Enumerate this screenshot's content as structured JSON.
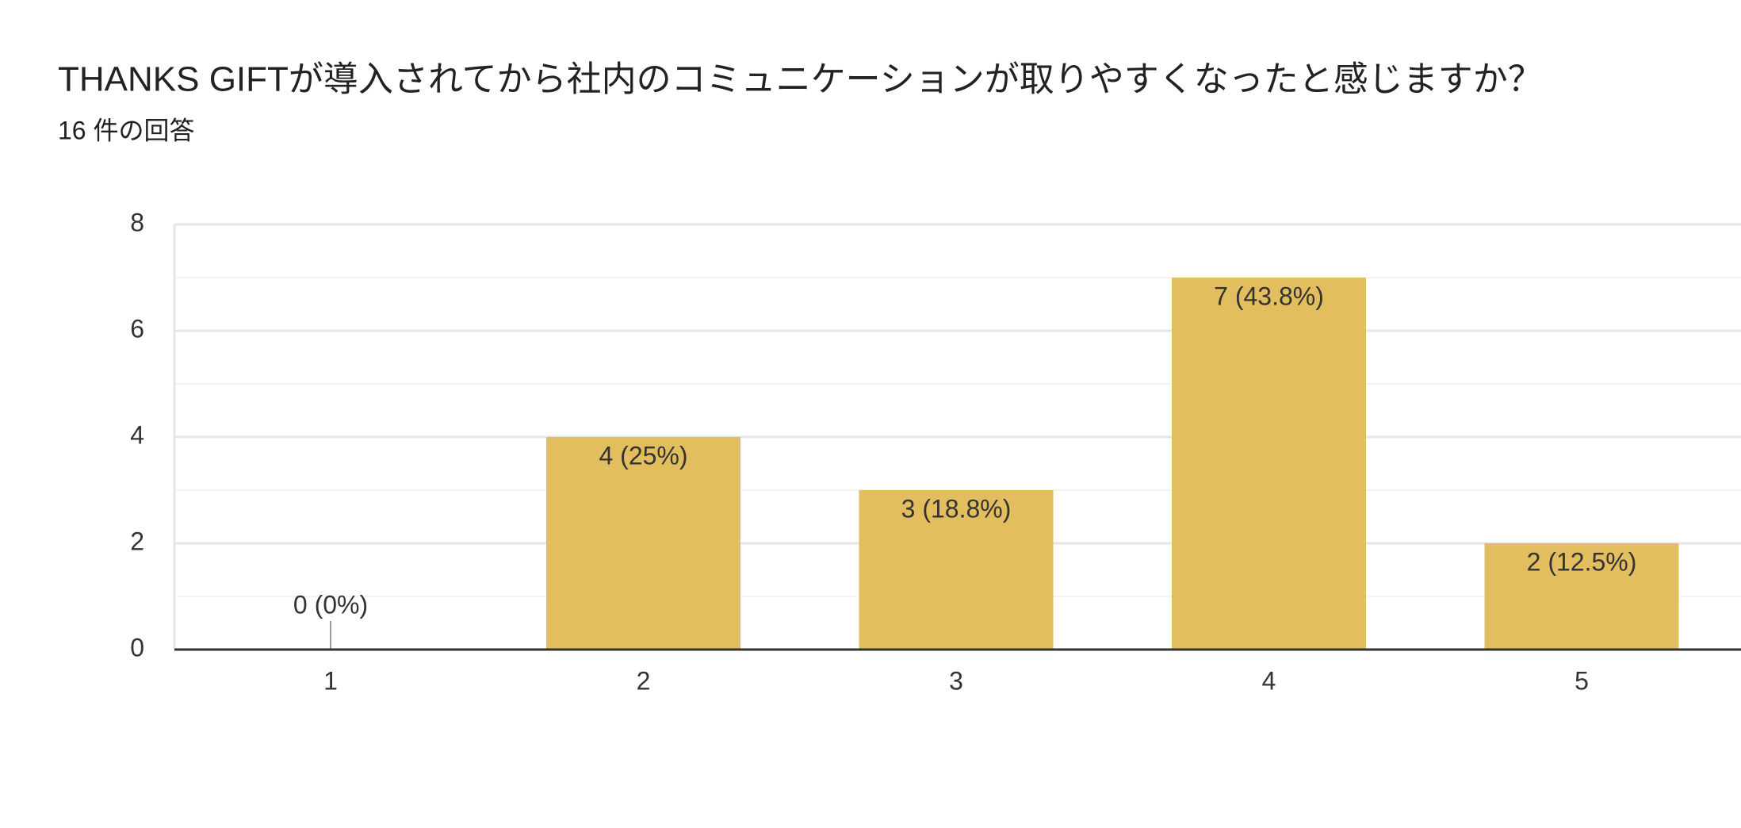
{
  "chart_data": {
    "type": "bar",
    "title": "THANKS GIFTが導入されてから社内のコミュニケーションが取りやすくなったと感じますか？",
    "subtitle": "16 件の回答",
    "categories": [
      "1",
      "2",
      "3",
      "4",
      "5"
    ],
    "values": [
      0,
      4,
      3,
      7,
      2
    ],
    "value_labels": [
      "0 (0%)",
      "4 (25%)",
      "3 (18.8%)",
      "7 (43.8%)",
      "2 (12.5%)"
    ],
    "color": "#e2be5f",
    "ylim": [
      0,
      8
    ],
    "yticks": [
      0,
      2,
      4,
      6,
      8
    ],
    "grid": true
  }
}
